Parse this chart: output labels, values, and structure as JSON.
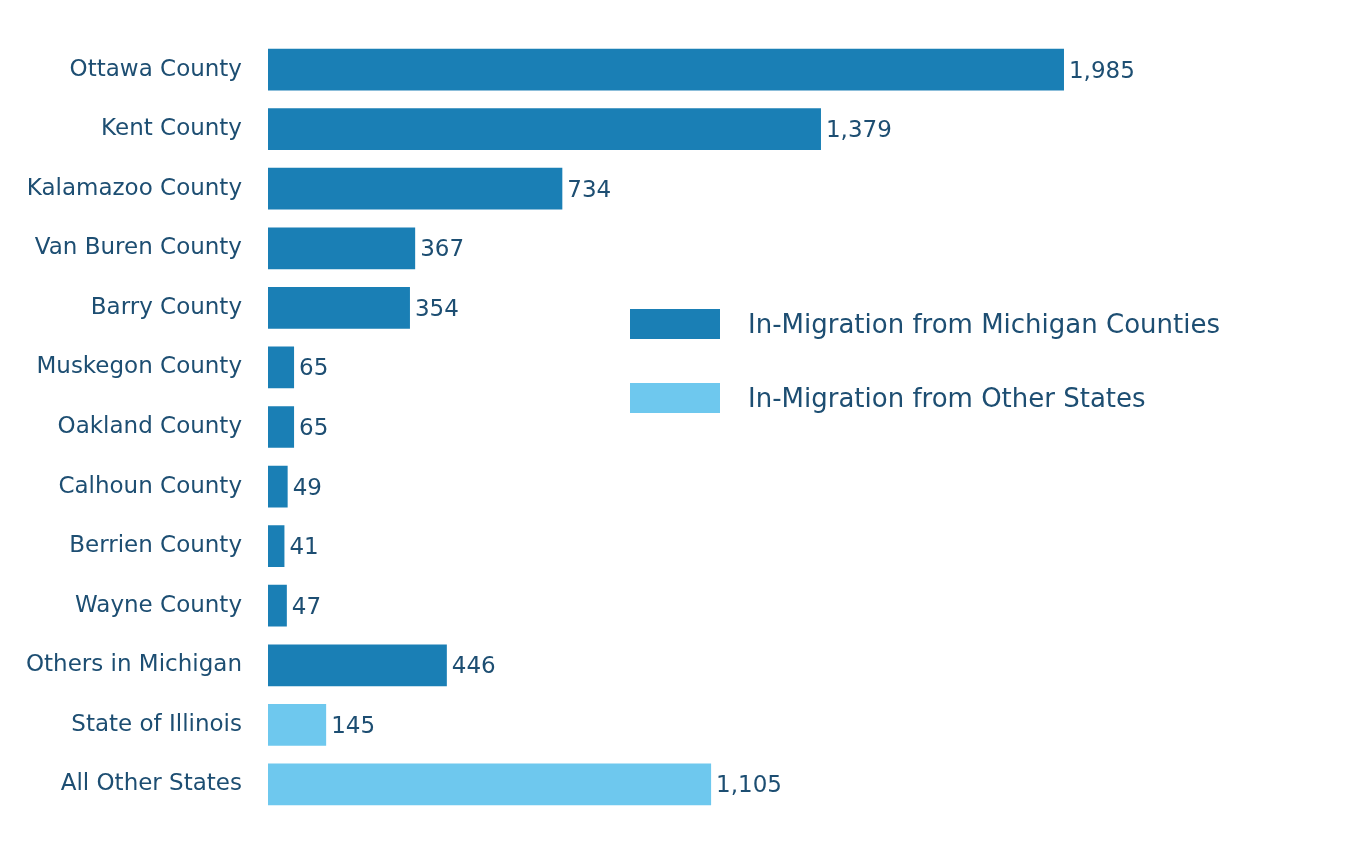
{
  "chart_data": {
    "type": "bar",
    "orientation": "horizontal",
    "stacked": true,
    "categories": [
      "Ottawa County",
      "Kent County",
      "Kalamazoo County",
      "Van Buren County",
      "Barry County",
      "Muskegon County",
      "Oakland County",
      "Calhoun County",
      "Berrien County",
      "Wayne County",
      "Others in Michigan",
      "State of Illinois",
      "All Other States"
    ],
    "series": [
      {
        "name": "In-Migration from Michigan Counties",
        "color": "#1a7fb5",
        "values": [
          1985,
          1379,
          734,
          367,
          354,
          65,
          65,
          49,
          41,
          47,
          446,
          null,
          null
        ],
        "value_labels": [
          "1,985",
          "1,379",
          "734",
          "367",
          "354",
          "65",
          "65",
          "49",
          "41",
          "47",
          "446",
          null,
          null
        ]
      },
      {
        "name": "In-Migration from Other States",
        "color": "#6ec8ee",
        "values": [
          null,
          null,
          null,
          null,
          null,
          null,
          null,
          null,
          null,
          null,
          null,
          145,
          1105
        ],
        "value_labels": [
          null,
          null,
          null,
          null,
          null,
          null,
          null,
          null,
          null,
          null,
          null,
          "145",
          "1,105"
        ]
      }
    ],
    "tick_labels": "y",
    "legend": "right"
  }
}
